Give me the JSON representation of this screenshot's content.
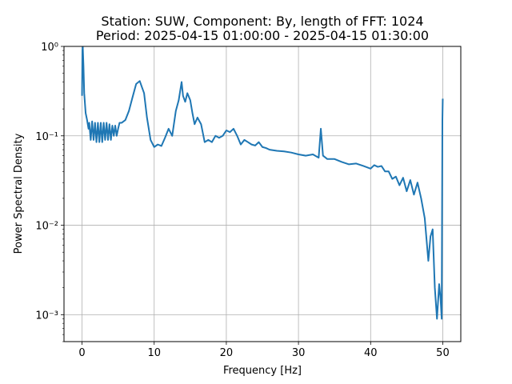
{
  "chart_data": {
    "type": "line",
    "title_line1": "Station: SUW, Component: By, length of FFT: 1024",
    "title_line2": "Period: 2025-04-15 01:00:00 - 2025-04-15 01:30:00",
    "xlabel": "Frequency [Hz]",
    "ylabel": "Power Spectral Density",
    "xlim": [
      -2.5,
      52.5
    ],
    "ylim": [
      0.0005,
      1
    ],
    "yscale": "log",
    "grid": true,
    "line_color": "#1f77b4",
    "x_ticks": [
      0,
      10,
      20,
      30,
      40,
      50
    ],
    "x_tick_labels": [
      "0",
      "10",
      "20",
      "30",
      "40",
      "50"
    ],
    "y_ticks": [
      0.001,
      0.01,
      0.1,
      1
    ],
    "y_tick_labels": [
      "10⁻³",
      "10⁻²",
      "10⁻¹",
      "10⁰"
    ],
    "series": [
      {
        "x": [
          0,
          0.05,
          0.1,
          0.2,
          0.3,
          0.5,
          0.7,
          0.9,
          1.0,
          1.2,
          1.4,
          1.6,
          1.8,
          2.0,
          2.2,
          2.4,
          2.6,
          2.8,
          3.0,
          3.2,
          3.4,
          3.6,
          3.8,
          4.0,
          4.2,
          4.4,
          4.6,
          4.8,
          5.0,
          5.2,
          5.5,
          6.0,
          6.5,
          7.0,
          7.5,
          8.0,
          8.3,
          8.6,
          9.0,
          9.5,
          10.0,
          10.5,
          11.0,
          11.5,
          12.0,
          12.5,
          13.0,
          13.4,
          13.8,
          14.0,
          14.3,
          14.6,
          15.0,
          15.3,
          15.6,
          16.0,
          16.5,
          17.0,
          17.5,
          18.0,
          18.5,
          19.0,
          19.5,
          20.0,
          20.5,
          21.0,
          21.5,
          22.0,
          22.5,
          23.0,
          23.5,
          24.0,
          24.5,
          25.0,
          25.5,
          26.0,
          27.0,
          28.0,
          29.0,
          30.0,
          31.0,
          32.0,
          32.8,
          33.1,
          33.4,
          34.0,
          35.0,
          36.0,
          37.0,
          38.0,
          39.0,
          40.0,
          40.5,
          41.0,
          41.5,
          42.0,
          42.5,
          43.0,
          43.5,
          44.0,
          44.5,
          45.0,
          45.5,
          46.0,
          46.5,
          47.0,
          47.5,
          48.0,
          48.3,
          48.6,
          48.9,
          49.2,
          49.5,
          49.7,
          49.85,
          49.95,
          50.0
        ],
        "y": [
          0.28,
          0.9,
          1.0,
          0.6,
          0.3,
          0.18,
          0.15,
          0.12,
          0.14,
          0.09,
          0.145,
          0.09,
          0.14,
          0.085,
          0.14,
          0.085,
          0.14,
          0.085,
          0.14,
          0.09,
          0.14,
          0.09,
          0.135,
          0.09,
          0.13,
          0.1,
          0.13,
          0.1,
          0.12,
          0.14,
          0.14,
          0.15,
          0.19,
          0.27,
          0.38,
          0.41,
          0.35,
          0.3,
          0.16,
          0.09,
          0.075,
          0.08,
          0.077,
          0.095,
          0.12,
          0.1,
          0.19,
          0.25,
          0.4,
          0.28,
          0.24,
          0.3,
          0.25,
          0.18,
          0.135,
          0.16,
          0.135,
          0.085,
          0.09,
          0.085,
          0.1,
          0.095,
          0.1,
          0.115,
          0.11,
          0.12,
          0.1,
          0.08,
          0.09,
          0.085,
          0.08,
          0.078,
          0.085,
          0.075,
          0.073,
          0.07,
          0.068,
          0.067,
          0.065,
          0.062,
          0.06,
          0.062,
          0.057,
          0.12,
          0.06,
          0.055,
          0.055,
          0.051,
          0.048,
          0.049,
          0.046,
          0.043,
          0.047,
          0.045,
          0.046,
          0.04,
          0.04,
          0.033,
          0.035,
          0.028,
          0.034,
          0.024,
          0.032,
          0.022,
          0.03,
          0.02,
          0.012,
          0.004,
          0.0075,
          0.009,
          0.002,
          0.0009,
          0.0022,
          0.0015,
          0.0009,
          0.15,
          0.26
        ]
      }
    ]
  }
}
